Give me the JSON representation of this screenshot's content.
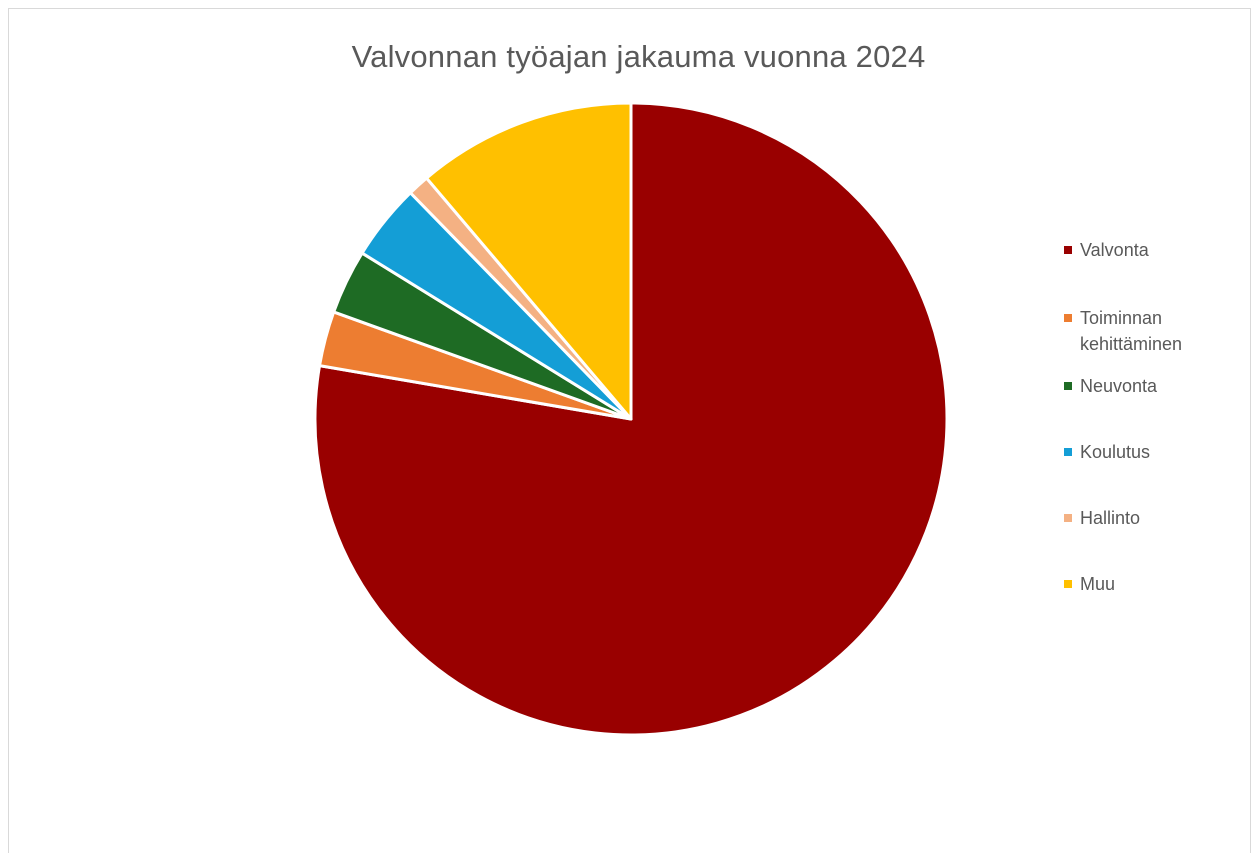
{
  "chart_data": {
    "type": "pie",
    "title": "Valvonnan työajan jakauma vuonna 2024",
    "categories": [
      "Valvonta",
      "Toiminnan kehittäminen",
      "Neuvonta",
      "Koulutus",
      "Hallinto",
      "Muu"
    ],
    "values": [
      77.7,
      2.8,
      3.3,
      3.9,
      1.1,
      11.2
    ],
    "unit": "",
    "start_angle_deg": 0,
    "direction": "clockwise",
    "colors": [
      "#990000",
      "#ED7D31",
      "#1E6B24",
      "#149ED6",
      "#F4B183",
      "#FFC000"
    ],
    "legend_position": "right",
    "slice_border_color": "#ffffff"
  }
}
